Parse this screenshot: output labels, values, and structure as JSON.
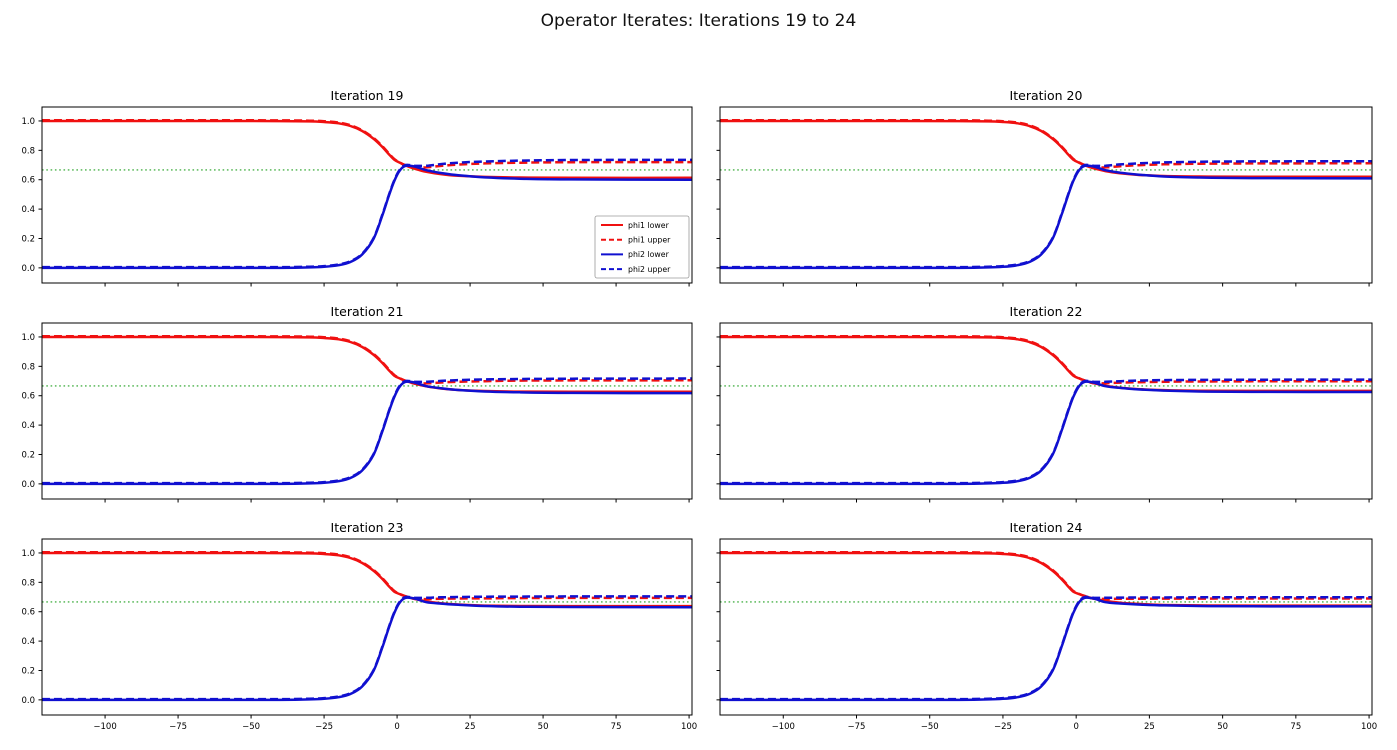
{
  "chart_data": {
    "type": "line",
    "suptitle": "Operator Iterates: Iterations 19 to 24",
    "layout": {
      "rows": 3,
      "cols": 2,
      "sharex": true,
      "sharey": true,
      "grid": false
    },
    "xlim": [
      -121.6,
      101
    ],
    "ylim": [
      -0.103,
      1.095
    ],
    "xticks": [
      -100,
      -75,
      -50,
      -25,
      0,
      25,
      50,
      75,
      100
    ],
    "xtick_labels": [
      "−100",
      "−75",
      "−50",
      "−25",
      "0",
      "25",
      "50",
      "75",
      "100"
    ],
    "yticks": [
      0.0,
      0.2,
      0.4,
      0.6,
      0.8,
      1.0
    ],
    "ytick_labels": [
      "0.0",
      "0.2",
      "0.4",
      "0.6",
      "0.8",
      "1.0"
    ],
    "colors": {
      "phi1": "#f01010",
      "phi2": "#1010d0",
      "reference": "#22a022"
    },
    "reference_line": {
      "y": 0.6667,
      "color": "#22a022",
      "style": "dotted"
    },
    "legend": {
      "location": "lower right of first subplot",
      "entries": [
        {
          "label": "phi1 lower",
          "color": "#f01010",
          "dash": false
        },
        {
          "label": "phi1 upper",
          "color": "#f01010",
          "dash": true
        },
        {
          "label": "phi2 lower",
          "color": "#1010d0",
          "dash": false
        },
        {
          "label": "phi2 upper",
          "color": "#1010d0",
          "dash": true
        }
      ]
    },
    "x": [
      -121.6,
      -90,
      -60,
      -40,
      -30,
      -25,
      -20,
      -16,
      -12,
      -8,
      -5,
      -3,
      -1,
      1,
      3,
      6,
      10,
      15,
      21,
      30,
      42,
      60,
      101
    ],
    "subplots": [
      {
        "title": "Iteration 19",
        "series": [
          {
            "name": "phi1 lower",
            "color": "#f01010",
            "dash": false,
            "y": [
              1.0,
              1.0,
              1.0,
              0.999,
              0.997,
              0.993,
              0.984,
              0.966,
              0.932,
              0.878,
              0.822,
              0.778,
              0.737,
              0.715,
              0.696,
              0.675,
              0.654,
              0.638,
              0.627,
              0.619,
              0.615,
              0.613,
              0.613
            ]
          },
          {
            "name": "phi1 upper",
            "color": "#f01010",
            "dash": true,
            "y": [
              1.005,
              1.005,
              1.005,
              1.004,
              1.002,
              0.998,
              0.989,
              0.971,
              0.937,
              0.883,
              0.827,
              0.783,
              0.742,
              0.716,
              0.698,
              0.684,
              0.684,
              0.694,
              0.703,
              0.711,
              0.716,
              0.719,
              0.72
            ]
          },
          {
            "name": "phi2 lower",
            "color": "#1010d0",
            "dash": false,
            "y": [
              0.0,
              0.0,
              0.0,
              0.0,
              0.003,
              0.007,
              0.018,
              0.04,
              0.09,
              0.2,
              0.36,
              0.48,
              0.59,
              0.665,
              0.695,
              0.69,
              0.665,
              0.646,
              0.63,
              0.616,
              0.607,
              0.602,
              0.6
            ]
          },
          {
            "name": "phi2 upper",
            "color": "#1010d0",
            "dash": true,
            "y": [
              0.005,
              0.005,
              0.005,
              0.005,
              0.008,
              0.012,
              0.023,
              0.045,
              0.095,
              0.205,
              0.365,
              0.485,
              0.595,
              0.67,
              0.7,
              0.695,
              0.695,
              0.706,
              0.716,
              0.724,
              0.73,
              0.734,
              0.735
            ]
          }
        ]
      },
      {
        "title": "Iteration 20",
        "series": [
          {
            "name": "phi1 lower",
            "color": "#f01010",
            "dash": false,
            "y": [
              1.0,
              1.0,
              1.0,
              0.999,
              0.997,
              0.993,
              0.984,
              0.966,
              0.932,
              0.878,
              0.822,
              0.778,
              0.737,
              0.716,
              0.698,
              0.678,
              0.659,
              0.644,
              0.633,
              0.625,
              0.622,
              0.62,
              0.62
            ]
          },
          {
            "name": "phi1 upper",
            "color": "#f01010",
            "dash": true,
            "y": [
              1.005,
              1.005,
              1.005,
              1.004,
              1.002,
              0.998,
              0.989,
              0.971,
              0.937,
              0.883,
              0.827,
              0.783,
              0.742,
              0.717,
              0.699,
              0.684,
              0.684,
              0.692,
              0.699,
              0.705,
              0.709,
              0.711,
              0.712
            ]
          },
          {
            "name": "phi2 lower",
            "color": "#1010d0",
            "dash": false,
            "y": [
              0.0,
              0.0,
              0.0,
              0.0,
              0.003,
              0.007,
              0.018,
              0.04,
              0.09,
              0.2,
              0.36,
              0.48,
              0.59,
              0.665,
              0.695,
              0.69,
              0.665,
              0.648,
              0.635,
              0.622,
              0.615,
              0.611,
              0.609
            ]
          },
          {
            "name": "phi2 upper",
            "color": "#1010d0",
            "dash": true,
            "y": [
              0.005,
              0.005,
              0.005,
              0.005,
              0.008,
              0.012,
              0.023,
              0.045,
              0.095,
              0.205,
              0.365,
              0.485,
              0.595,
              0.67,
              0.7,
              0.695,
              0.695,
              0.704,
              0.711,
              0.718,
              0.722,
              0.725,
              0.726
            ]
          }
        ]
      },
      {
        "title": "Iteration 21",
        "series": [
          {
            "name": "phi1 lower",
            "color": "#f01010",
            "dash": false,
            "y": [
              1.0,
              1.0,
              1.0,
              0.999,
              0.997,
              0.993,
              0.984,
              0.966,
              0.932,
              0.878,
              0.822,
              0.778,
              0.737,
              0.717,
              0.701,
              0.682,
              0.664,
              0.649,
              0.639,
              0.632,
              0.628,
              0.627,
              0.627
            ]
          },
          {
            "name": "phi1 upper",
            "color": "#f01010",
            "dash": true,
            "y": [
              1.005,
              1.005,
              1.005,
              1.004,
              1.002,
              0.998,
              0.989,
              0.971,
              0.937,
              0.883,
              0.827,
              0.783,
              0.742,
              0.718,
              0.701,
              0.684,
              0.684,
              0.69,
              0.695,
              0.699,
              0.703,
              0.704,
              0.705
            ]
          },
          {
            "name": "phi2 lower",
            "color": "#1010d0",
            "dash": false,
            "y": [
              0.0,
              0.0,
              0.0,
              0.0,
              0.003,
              0.007,
              0.018,
              0.04,
              0.09,
              0.2,
              0.36,
              0.48,
              0.59,
              0.665,
              0.695,
              0.69,
              0.665,
              0.651,
              0.639,
              0.629,
              0.623,
              0.619,
              0.618
            ]
          },
          {
            "name": "phi2 upper",
            "color": "#1010d0",
            "dash": true,
            "y": [
              0.005,
              0.005,
              0.005,
              0.005,
              0.008,
              0.012,
              0.023,
              0.045,
              0.095,
              0.205,
              0.365,
              0.485,
              0.595,
              0.67,
              0.7,
              0.695,
              0.695,
              0.701,
              0.706,
              0.711,
              0.714,
              0.716,
              0.717
            ]
          }
        ]
      },
      {
        "title": "Iteration 22",
        "series": [
          {
            "name": "phi1 lower",
            "color": "#f01010",
            "dash": false,
            "y": [
              1.0,
              1.0,
              1.0,
              0.999,
              0.997,
              0.993,
              0.984,
              0.966,
              0.932,
              0.878,
              0.822,
              0.778,
              0.737,
              0.718,
              0.703,
              0.685,
              0.668,
              0.654,
              0.645,
              0.638,
              0.634,
              0.633,
              0.633
            ]
          },
          {
            "name": "phi1 upper",
            "color": "#f01010",
            "dash": true,
            "y": [
              1.005,
              1.005,
              1.005,
              1.004,
              1.002,
              0.998,
              0.989,
              0.971,
              0.937,
              0.883,
              0.827,
              0.783,
              0.742,
              0.719,
              0.703,
              0.685,
              0.685,
              0.689,
              0.692,
              0.695,
              0.697,
              0.698,
              0.699
            ]
          },
          {
            "name": "phi2 lower",
            "color": "#1010d0",
            "dash": false,
            "y": [
              0.0,
              0.0,
              0.0,
              0.0,
              0.003,
              0.007,
              0.018,
              0.04,
              0.09,
              0.2,
              0.36,
              0.48,
              0.59,
              0.665,
              0.695,
              0.69,
              0.665,
              0.653,
              0.643,
              0.635,
              0.629,
              0.626,
              0.625
            ]
          },
          {
            "name": "phi2 upper",
            "color": "#1010d0",
            "dash": true,
            "y": [
              0.005,
              0.005,
              0.005,
              0.005,
              0.008,
              0.012,
              0.023,
              0.045,
              0.095,
              0.205,
              0.365,
              0.485,
              0.595,
              0.67,
              0.7,
              0.695,
              0.695,
              0.699,
              0.703,
              0.706,
              0.708,
              0.709,
              0.71
            ]
          }
        ]
      },
      {
        "title": "Iteration 23",
        "series": [
          {
            "name": "phi1 lower",
            "color": "#f01010",
            "dash": false,
            "y": [
              1.0,
              1.0,
              1.0,
              0.999,
              0.997,
              0.993,
              0.984,
              0.966,
              0.932,
              0.878,
              0.822,
              0.778,
              0.737,
              0.719,
              0.704,
              0.687,
              0.671,
              0.658,
              0.649,
              0.642,
              0.639,
              0.638,
              0.638
            ]
          },
          {
            "name": "phi1 upper",
            "color": "#f01010",
            "dash": true,
            "y": [
              1.005,
              1.005,
              1.005,
              1.004,
              1.002,
              0.998,
              0.989,
              0.971,
              0.937,
              0.883,
              0.827,
              0.783,
              0.742,
              0.72,
              0.705,
              0.687,
              0.686,
              0.688,
              0.69,
              0.691,
              0.693,
              0.694,
              0.694
            ]
          },
          {
            "name": "phi2 lower",
            "color": "#1010d0",
            "dash": false,
            "y": [
              0.0,
              0.0,
              0.0,
              0.0,
              0.003,
              0.007,
              0.018,
              0.04,
              0.09,
              0.2,
              0.36,
              0.48,
              0.59,
              0.665,
              0.695,
              0.69,
              0.665,
              0.655,
              0.647,
              0.639,
              0.634,
              0.632,
              0.631
            ]
          },
          {
            "name": "phi2 upper",
            "color": "#1010d0",
            "dash": true,
            "y": [
              0.005,
              0.005,
              0.005,
              0.005,
              0.008,
              0.012,
              0.023,
              0.045,
              0.095,
              0.205,
              0.365,
              0.485,
              0.595,
              0.67,
              0.7,
              0.695,
              0.695,
              0.698,
              0.7,
              0.702,
              0.703,
              0.704,
              0.704
            ]
          }
        ]
      },
      {
        "title": "Iteration 24",
        "series": [
          {
            "name": "phi1 lower",
            "color": "#f01010",
            "dash": false,
            "y": [
              1.0,
              1.0,
              1.0,
              0.999,
              0.997,
              0.993,
              0.984,
              0.966,
              0.932,
              0.878,
              0.822,
              0.778,
              0.737,
              0.72,
              0.706,
              0.689,
              0.674,
              0.661,
              0.653,
              0.646,
              0.643,
              0.642,
              0.642
            ]
          },
          {
            "name": "phi1 upper",
            "color": "#f01010",
            "dash": true,
            "y": [
              1.005,
              1.005,
              1.005,
              1.004,
              1.002,
              0.998,
              0.989,
              0.971,
              0.937,
              0.883,
              0.827,
              0.783,
              0.742,
              0.721,
              0.706,
              0.689,
              0.687,
              0.688,
              0.688,
              0.689,
              0.689,
              0.69,
              0.69
            ]
          },
          {
            "name": "phi2 lower",
            "color": "#1010d0",
            "dash": false,
            "y": [
              0.0,
              0.0,
              0.0,
              0.0,
              0.003,
              0.007,
              0.018,
              0.04,
              0.09,
              0.2,
              0.36,
              0.48,
              0.59,
              0.665,
              0.695,
              0.69,
              0.665,
              0.656,
              0.649,
              0.643,
              0.639,
              0.637,
              0.636
            ]
          },
          {
            "name": "phi2 upper",
            "color": "#1010d0",
            "dash": true,
            "y": [
              0.005,
              0.005,
              0.005,
              0.005,
              0.008,
              0.012,
              0.023,
              0.045,
              0.095,
              0.205,
              0.365,
              0.485,
              0.595,
              0.67,
              0.7,
              0.695,
              0.695,
              0.696,
              0.697,
              0.697,
              0.698,
              0.698,
              0.698
            ]
          }
        ]
      }
    ]
  }
}
